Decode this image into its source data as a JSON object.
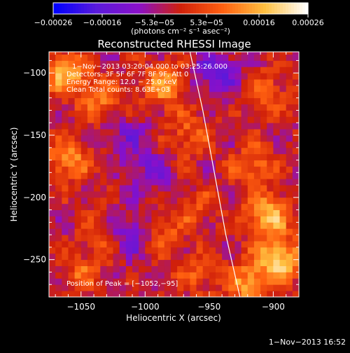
{
  "chart_data": {
    "type": "heatmap",
    "title": "Reconstructed RHESSI Image",
    "xlabel": "Heliocentric X (arcsec)",
    "ylabel": "Heliocentric Y (arcsec)",
    "xlim": [
      -1075,
      -880
    ],
    "ylim": [
      -280,
      -83
    ],
    "x_ticks": [
      {
        "value": -1050,
        "label": "−1050"
      },
      {
        "value": -1000,
        "label": "−1000"
      },
      {
        "value": -950,
        "label": "−950"
      },
      {
        "value": -900,
        "label": "−900"
      }
    ],
    "y_ticks": [
      {
        "value": -100,
        "label": "−100"
      },
      {
        "value": -150,
        "label": "−150"
      },
      {
        "value": -200,
        "label": "−200"
      },
      {
        "value": -250,
        "label": "−250"
      }
    ],
    "colorbar": {
      "range": [
        -0.00026,
        0.00026
      ],
      "colors": [
        "#0000ff",
        "#5a1adb",
        "#8a10c9",
        "#d0200a",
        "#ff6010",
        "#ffc040",
        "#ffffff"
      ],
      "tick_values": [
        -0.00026,
        -0.00016,
        -5.3e-05,
        5.3e-05,
        0.00016,
        0.00026
      ],
      "tick_labels": [
        "−0.00026",
        "−0.00016",
        "−5.3e−05",
        "5.3e−05",
        "0.00016",
        "0.00026"
      ],
      "unit_label": "(photons cm⁻² s⁻¹ asec⁻²)"
    },
    "annotations": {
      "time_range": "1−Nov−2013 03:20:04.000 to 03:25:26.000",
      "detectors": "Detectors: 3F 5F 6F 7F 8F 9F, Att 0",
      "energy_range": "Energy Range: 12.0 − 25.0 keV",
      "clean_info": "Clean     Total counts: 8.63E+03",
      "peak_position": "Position of Peak = [−1052,−95]"
    },
    "limb_curve": [
      [
        -965,
        -83
      ],
      [
        -955,
        -130
      ],
      [
        -946,
        -180
      ],
      [
        -937,
        -230
      ],
      [
        -926,
        -280
      ]
    ],
    "intensity_blobs": [
      {
        "x": -1062,
        "y": -100,
        "v": 0.00018
      },
      {
        "x": -1035,
        "y": -120,
        "v": 0.00012
      },
      {
        "x": -1060,
        "y": -170,
        "v": 0.00014
      },
      {
        "x": -985,
        "y": -110,
        "v": 0.00016
      },
      {
        "x": -965,
        "y": -150,
        "v": 0.0001
      },
      {
        "x": -1015,
        "y": -150,
        "v": -8e-05
      },
      {
        "x": -945,
        "y": -100,
        "v": -0.00014
      },
      {
        "x": -1030,
        "y": -232,
        "v": 0.00011
      },
      {
        "x": -1050,
        "y": -262,
        "v": 9e-05
      },
      {
        "x": -990,
        "y": -230,
        "v": 0.0001
      },
      {
        "x": -1012,
        "y": -230,
        "v": -0.00016
      },
      {
        "x": -905,
        "y": -215,
        "v": 0.0002
      },
      {
        "x": -895,
        "y": -250,
        "v": 0.00022
      },
      {
        "x": -915,
        "y": -175,
        "v": 0.00012
      },
      {
        "x": -905,
        "y": -115,
        "v": 0.0001
      },
      {
        "x": -960,
        "y": -210,
        "v": 7e-05
      },
      {
        "x": -995,
        "y": -180,
        "v": -9e-05
      },
      {
        "x": -960,
        "y": -260,
        "v": 8e-05
      },
      {
        "x": -920,
        "y": -270,
        "v": 0.00016
      }
    ]
  },
  "footer": {
    "date": "1−Nov−2013 16:52"
  }
}
